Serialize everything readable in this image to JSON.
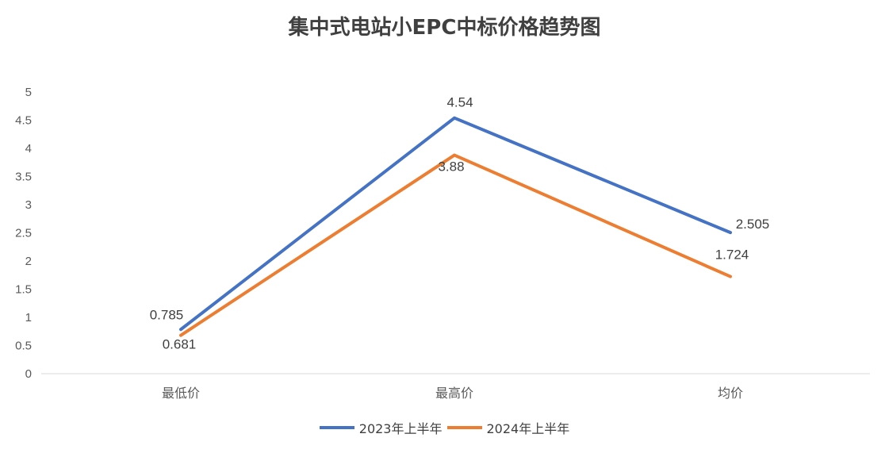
{
  "chart_data": {
    "type": "line",
    "title": "集中式电站小EPC中标价格趋势图",
    "categories": [
      "最低价",
      "最高价",
      "均价"
    ],
    "ylim": [
      0,
      5
    ],
    "yticks": [
      "0",
      "0.5",
      "1",
      "1.5",
      "2",
      "2.5",
      "3",
      "3.5",
      "4",
      "4.5",
      "5"
    ],
    "grid": false,
    "legend_position": "bottom",
    "series": [
      {
        "name": "2023年上半年",
        "color": "#4472C4",
        "values": [
          0.785,
          4.54,
          2.505
        ],
        "labels": [
          "0.785",
          "4.54",
          "2.505"
        ]
      },
      {
        "name": "2024年上半年",
        "color": "#ED7D31",
        "values": [
          0.681,
          3.88,
          1.724
        ],
        "labels": [
          "0.681",
          "3.88",
          "1.724"
        ]
      }
    ]
  }
}
